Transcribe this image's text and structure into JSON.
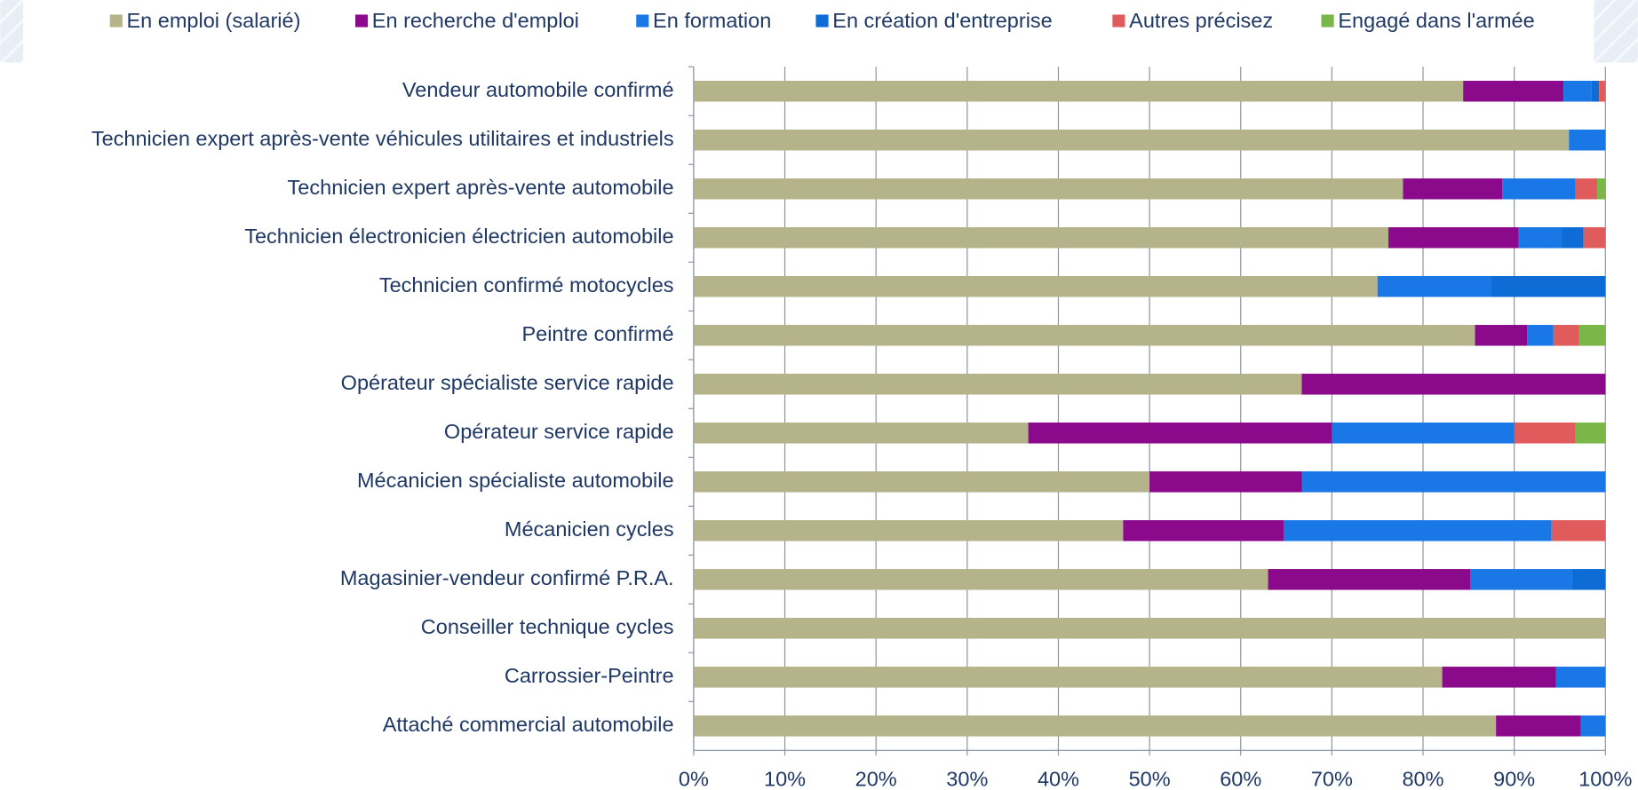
{
  "chart_data": {
    "type": "stacked_barh",
    "categories": [
      "Vendeur automobile confirmé",
      "Technicien expert après-vente véhicules utilitaires et industriels",
      "Technicien expert après-vente automobile",
      "Technicien électronicien électricien automobile",
      "Technicien confirmé motocycles",
      "Peintre confirmé",
      "Opérateur spécialiste service rapide",
      "Opérateur service rapide",
      "Mécanicien spécialiste automobile",
      "Mécanicien cycles",
      "Magasinier-vendeur confirmé P.R.A.",
      "Conseiller technique cycles",
      "Carrossier-Peintre",
      "Attaché commercial automobile"
    ],
    "series": [
      {
        "name": "En emploi (salarié)",
        "color": "#b5b38a",
        "values": [
          84.4,
          96,
          77.8,
          76.2,
          75,
          85.7,
          66.7,
          36.7,
          50,
          47.1,
          63,
          100,
          82.1,
          88
        ]
      },
      {
        "name": "En recherche d'emploi",
        "color": "#8b0a8b",
        "values": [
          11,
          0,
          10.9,
          14.3,
          0,
          5.7,
          33.3,
          33.3,
          16.7,
          17.6,
          22.2,
          0,
          12.5,
          9.3
        ]
      },
      {
        "name": "En formation",
        "color": "#1a78e6",
        "values": [
          3.1,
          4,
          8,
          4.7,
          12.5,
          2.9,
          0,
          20,
          33.3,
          29.4,
          11.1,
          0,
          5.4,
          2.7
        ]
      },
      {
        "name": "En création d'entreprise",
        "color": "#0e6cd6",
        "values": [
          0.8,
          0,
          0,
          2.4,
          12.5,
          0,
          0,
          0,
          0,
          0,
          3.7,
          0,
          0,
          0
        ]
      },
      {
        "name": "Autres précisez",
        "color": "#e05c5c",
        "values": [
          0.7,
          0,
          2.4,
          2.4,
          0,
          2.8,
          0,
          6.7,
          0,
          5.9,
          0,
          0,
          0,
          0
        ]
      },
      {
        "name": "Engagé dans l'armée",
        "color": "#7ab648",
        "values": [
          0,
          0,
          0.9,
          0,
          0,
          2.9,
          0,
          3.3,
          0,
          0,
          0,
          0,
          0,
          0
        ]
      }
    ],
    "xlim": [
      0,
      100
    ],
    "xticks": [
      {
        "value": 0,
        "label": "0%"
      },
      {
        "value": 10,
        "label": "10%"
      },
      {
        "value": 20,
        "label": "20%"
      },
      {
        "value": 30,
        "label": "30%"
      },
      {
        "value": 40,
        "label": "40%"
      },
      {
        "value": 50,
        "label": "50%"
      },
      {
        "value": 60,
        "label": "60%"
      },
      {
        "value": 70,
        "label": "70%"
      },
      {
        "value": 80,
        "label": "80%"
      },
      {
        "value": 90,
        "label": "90%"
      },
      {
        "value": 100,
        "label": "100%"
      }
    ],
    "grid": true,
    "legend": "top"
  }
}
